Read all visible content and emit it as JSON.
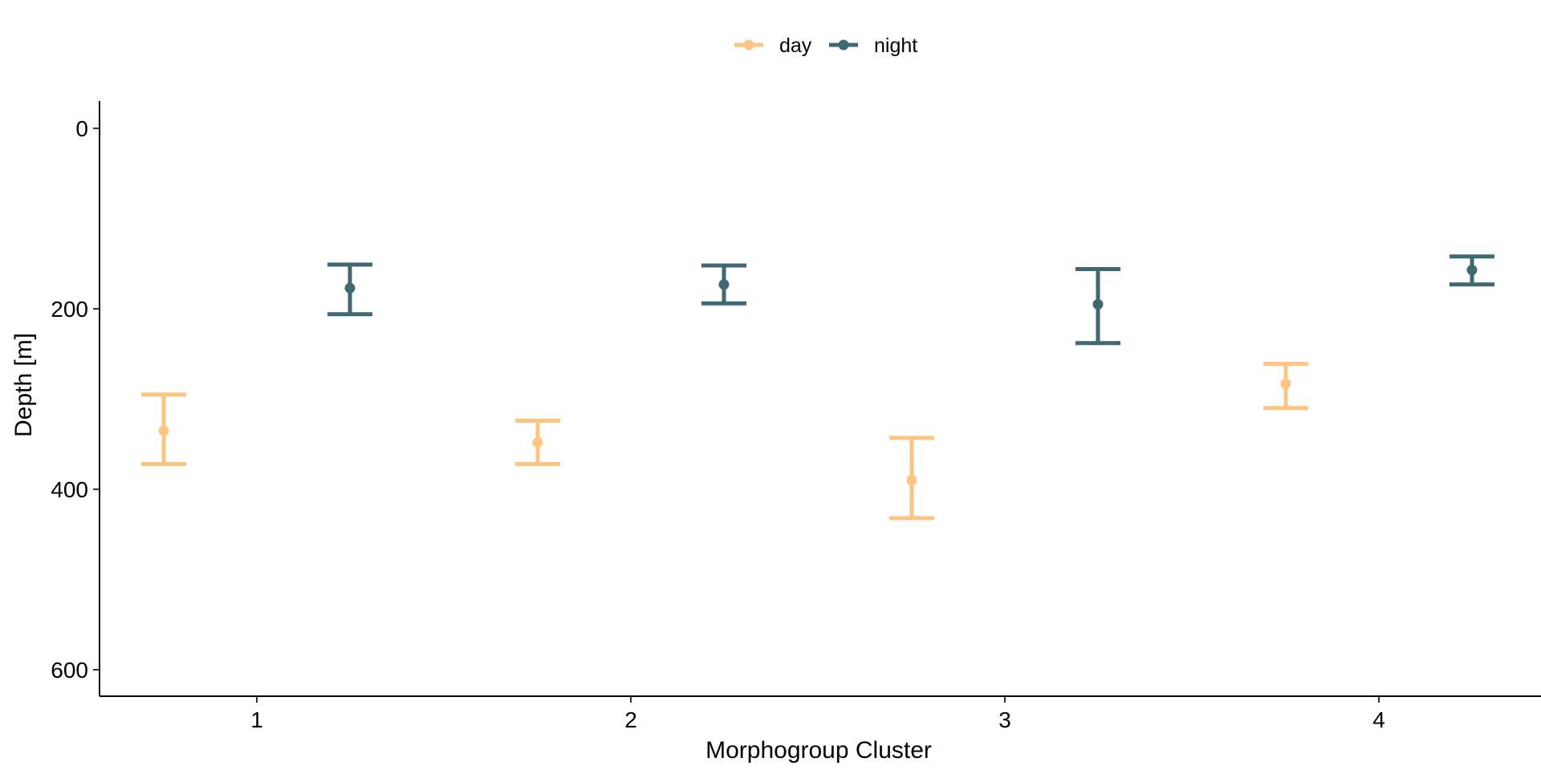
{
  "chart_data": {
    "type": "errorbar",
    "title": "",
    "xlabel": "Morphogroup Cluster",
    "ylabel": "Depth [m]",
    "categories": [
      "1",
      "2",
      "3",
      "4"
    ],
    "ylim": [
      630,
      -30
    ],
    "y_reversed": true,
    "yticks": [
      0,
      200,
      400,
      600
    ],
    "grid": false,
    "legend_position": "top",
    "series": [
      {
        "name": "day",
        "color": "#FDC581",
        "points": [
          {
            "x": "1",
            "mean": 335,
            "lower": 295,
            "upper": 372
          },
          {
            "x": "2",
            "mean": 348,
            "lower": 324,
            "upper": 372
          },
          {
            "x": "3",
            "mean": 390,
            "lower": 343,
            "upper": 432
          },
          {
            "x": "4",
            "mean": 283,
            "lower": 261,
            "upper": 310
          }
        ]
      },
      {
        "name": "night",
        "color": "#3F6872",
        "points": [
          {
            "x": "1",
            "mean": 177,
            "lower": 151,
            "upper": 206
          },
          {
            "x": "2",
            "mean": 173,
            "lower": 152,
            "upper": 194
          },
          {
            "x": "3",
            "mean": 195,
            "lower": 156,
            "upper": 238
          },
          {
            "x": "4",
            "mean": 157,
            "lower": 142,
            "upper": 173
          }
        ]
      }
    ]
  }
}
